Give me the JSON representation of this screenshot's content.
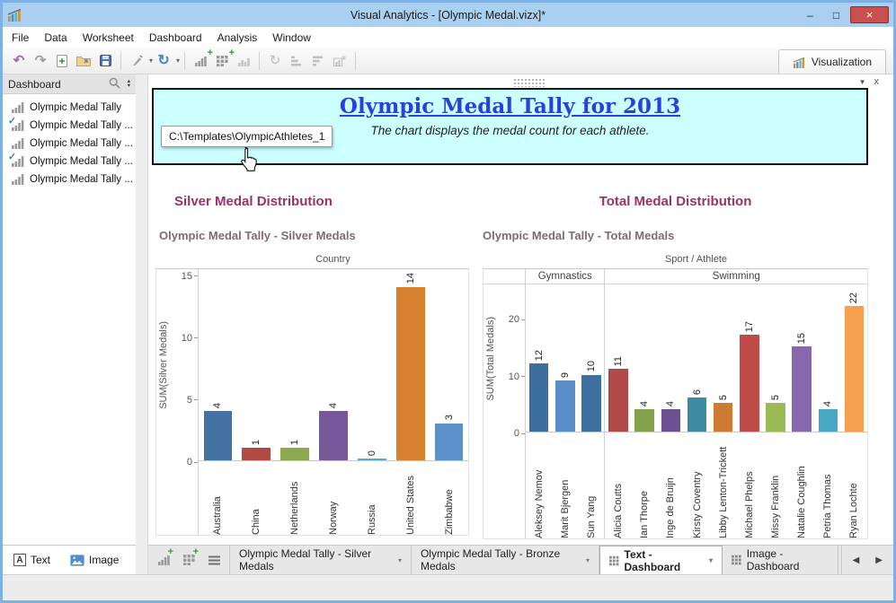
{
  "window": {
    "title": "Visual Analytics - [Olympic Medal.vizx]*",
    "controls": {
      "minimize": "–",
      "maximize": "□",
      "close": "×"
    }
  },
  "menu": {
    "items": [
      "File",
      "Data",
      "Worksheet",
      "Dashboard",
      "Analysis",
      "Window"
    ]
  },
  "toolbar": {
    "visualization_label": "Visualization"
  },
  "icons": {
    "undo": "↶",
    "redo": "↷",
    "refresh": "↻",
    "dropdown": "▾",
    "tab_prev": "◀",
    "tab_next": "▶",
    "check": "✓",
    "panel_collapse": "▼",
    "panel_close": "x",
    "spinner_up": "▴",
    "spinner_down": "▾",
    "rotate": "↻"
  },
  "sidebar": {
    "title": "Dashboard",
    "items": [
      {
        "label": "Olympic Medal Tally",
        "checked": false
      },
      {
        "label": "Olympic Medal Tally ...",
        "checked": true
      },
      {
        "label": "Olympic Medal Tally ...",
        "checked": false
      },
      {
        "label": "Olympic Medal Tally ...",
        "checked": true
      },
      {
        "label": "Olympic Medal Tally ...",
        "checked": false
      }
    ]
  },
  "dashboard": {
    "text_panel": {
      "title": "Olympic Medal Tally for 2013",
      "subtitle": "The chart displays the medal count for each athlete."
    },
    "tooltip": "C:\\Templates\\OlympicAthletes_1",
    "sections": [
      {
        "title": "Silver Medal Distribution"
      },
      {
        "title": "Total Medal Distribution"
      }
    ]
  },
  "chart_data": [
    {
      "type": "bar",
      "title": "Olympic Medal Tally - Silver Medals",
      "xlabel": "Country",
      "ylabel": "SUM(Silver Medals)",
      "categories": [
        "Australia",
        "China",
        "Netherlands",
        "Norway",
        "Russia",
        "United States",
        "Zimbabwe"
      ],
      "values": [
        4,
        1,
        1,
        4,
        0,
        14,
        3
      ],
      "colors": [
        "#4273a2",
        "#b04a42",
        "#8da84e",
        "#77599a",
        "#56aacc",
        "#d5812f",
        "#5b91c8"
      ],
      "yticks": [
        0,
        5,
        10,
        15
      ],
      "ylim": [
        0,
        15.5
      ],
      "grid": false,
      "value_labels": true,
      "legend": "none"
    },
    {
      "type": "bar",
      "title": "Olympic Medal Tally - Total Medals",
      "xlabel": "Sport / Athlete",
      "ylabel": "SUM(Total Medals)",
      "groups": [
        {
          "label": "Gymnastics",
          "span": 3
        },
        {
          "label": "Swimming",
          "span": 10
        }
      ],
      "categories": [
        "Aleksey Nemov",
        "Marit Bjergen",
        "Sun Yang",
        "Alicia Coutts",
        "Ian Thorpe",
        "Inge de Bruijn",
        "Kirsty Coventry",
        "Libby Lenton-Trickett",
        "Michael Phelps",
        "Missy Franklin",
        "Natalie Coughlin",
        "Petria Thomas",
        "Ryan Lochte"
      ],
      "values": [
        12,
        9,
        10,
        11,
        4,
        4,
        6,
        5,
        17,
        5,
        15,
        4,
        22
      ],
      "colors": [
        "#3c6e9e",
        "#5b8dc9",
        "#3d6f9f",
        "#b0494a",
        "#83a04a",
        "#6a5292",
        "#3d8ba3",
        "#cd7b33",
        "#c04a48",
        "#9aba55",
        "#8768ae",
        "#47a8c4",
        "#f5a04e"
      ],
      "yticks": [
        0,
        10,
        20
      ],
      "ylim": [
        0,
        26
      ],
      "grid": false,
      "value_labels": true,
      "legend": "none"
    }
  ],
  "tabbar": {
    "tabs": [
      {
        "label": "Olympic Medal Tally - Silver Medals",
        "type": "worksheet",
        "active": false,
        "dropdown": true
      },
      {
        "label": "Olympic Medal Tally - Bronze Medals",
        "type": "worksheet",
        "active": false,
        "dropdown": true
      },
      {
        "label": "Text - Dashboard",
        "type": "dashboard",
        "active": true,
        "dropdown": true
      },
      {
        "label": "Image - Dashboard",
        "type": "dashboard",
        "active": false,
        "dropdown": false
      }
    ]
  },
  "footer": {
    "text_label": "Text",
    "image_label": "Image"
  }
}
